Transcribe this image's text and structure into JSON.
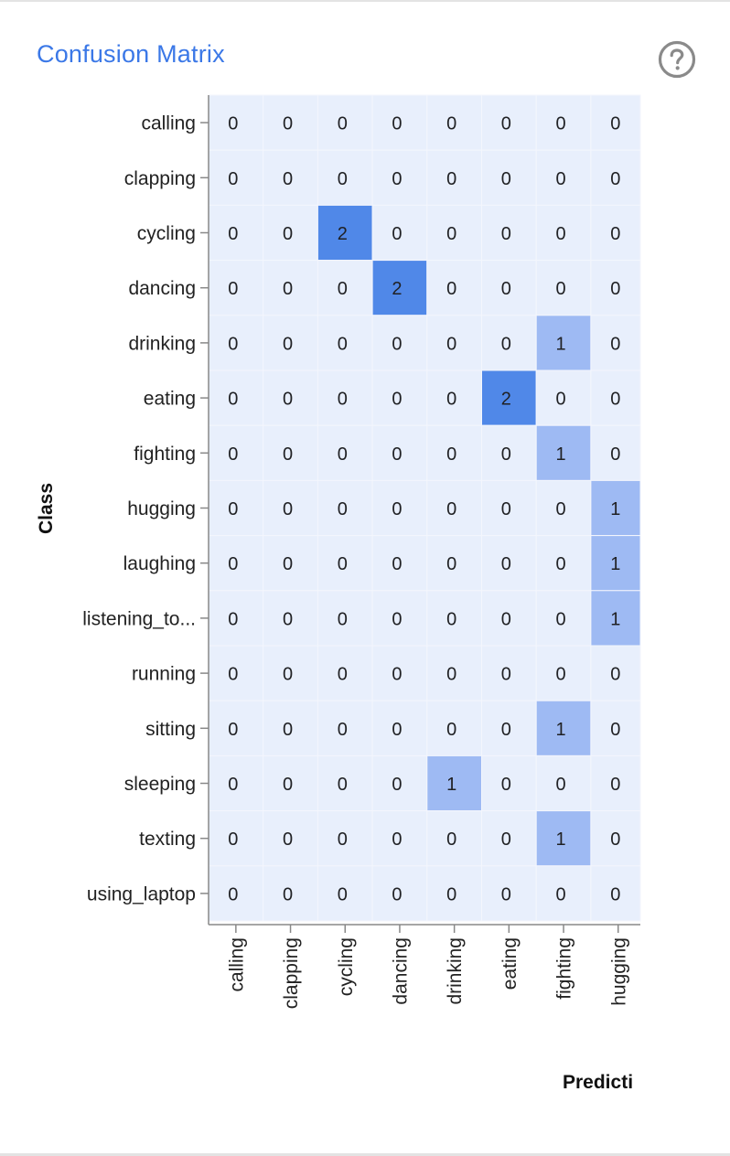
{
  "card": {
    "title": "Confusion Matrix",
    "help_icon": "help-circle-icon"
  },
  "chart_data": {
    "type": "heatmap",
    "ylabel": "Class",
    "xlabel": "Predicti",
    "row_labels": [
      "calling",
      "clapping",
      "cycling",
      "dancing",
      "drinking",
      "eating",
      "fighting",
      "hugging",
      "laughing",
      "listening_to...",
      "running",
      "sitting",
      "sleeping",
      "texting",
      "using_laptop"
    ],
    "col_labels": [
      "calling",
      "clapping",
      "cycling",
      "dancing",
      "drinking",
      "eating",
      "fighting",
      "hugging"
    ],
    "values": [
      [
        0,
        0,
        0,
        0,
        0,
        0,
        0,
        0
      ],
      [
        0,
        0,
        0,
        0,
        0,
        0,
        0,
        0
      ],
      [
        0,
        0,
        2,
        0,
        0,
        0,
        0,
        0
      ],
      [
        0,
        0,
        0,
        2,
        0,
        0,
        0,
        0
      ],
      [
        0,
        0,
        0,
        0,
        0,
        0,
        1,
        0
      ],
      [
        0,
        0,
        0,
        0,
        0,
        2,
        0,
        0
      ],
      [
        0,
        0,
        0,
        0,
        0,
        0,
        1,
        0
      ],
      [
        0,
        0,
        0,
        0,
        0,
        0,
        0,
        1
      ],
      [
        0,
        0,
        0,
        0,
        0,
        0,
        0,
        1
      ],
      [
        0,
        0,
        0,
        0,
        0,
        0,
        0,
        1
      ],
      [
        0,
        0,
        0,
        0,
        0,
        0,
        0,
        0
      ],
      [
        0,
        0,
        0,
        0,
        0,
        0,
        1,
        0
      ],
      [
        0,
        0,
        0,
        0,
        1,
        0,
        0,
        0
      ],
      [
        0,
        0,
        0,
        0,
        0,
        0,
        1,
        0
      ],
      [
        0,
        0,
        0,
        0,
        0,
        0,
        0,
        0
      ]
    ],
    "colors": {
      "zero": "#e8effc",
      "one": "#9ebaf3",
      "two": "#5088e8"
    },
    "grid": true
  }
}
